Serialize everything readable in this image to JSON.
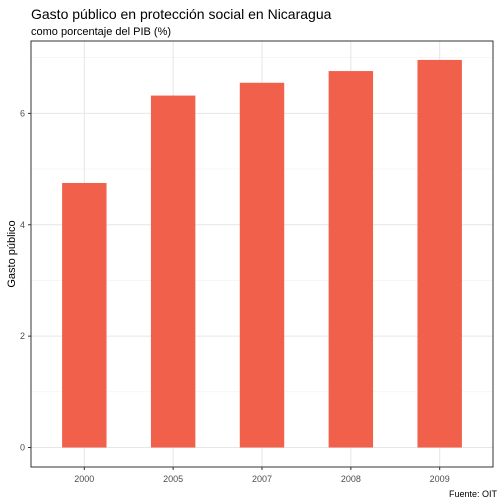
{
  "chart_data": {
    "type": "bar",
    "title": "Gasto público en protección social en Nicaragua",
    "subtitle": "como porcentaje del PIB (%)",
    "xlabel": "",
    "ylabel": "Gasto público",
    "caption": "Fuente: OIT",
    "categories": [
      "2000",
      "2005",
      "2007",
      "2008",
      "2009"
    ],
    "values": [
      4.75,
      6.32,
      6.55,
      6.76,
      6.96
    ],
    "ylim": [
      -0.35,
      7.3
    ],
    "yticks": [
      0,
      2,
      4,
      6
    ],
    "grid": true,
    "bar_color": "#F0604A"
  }
}
